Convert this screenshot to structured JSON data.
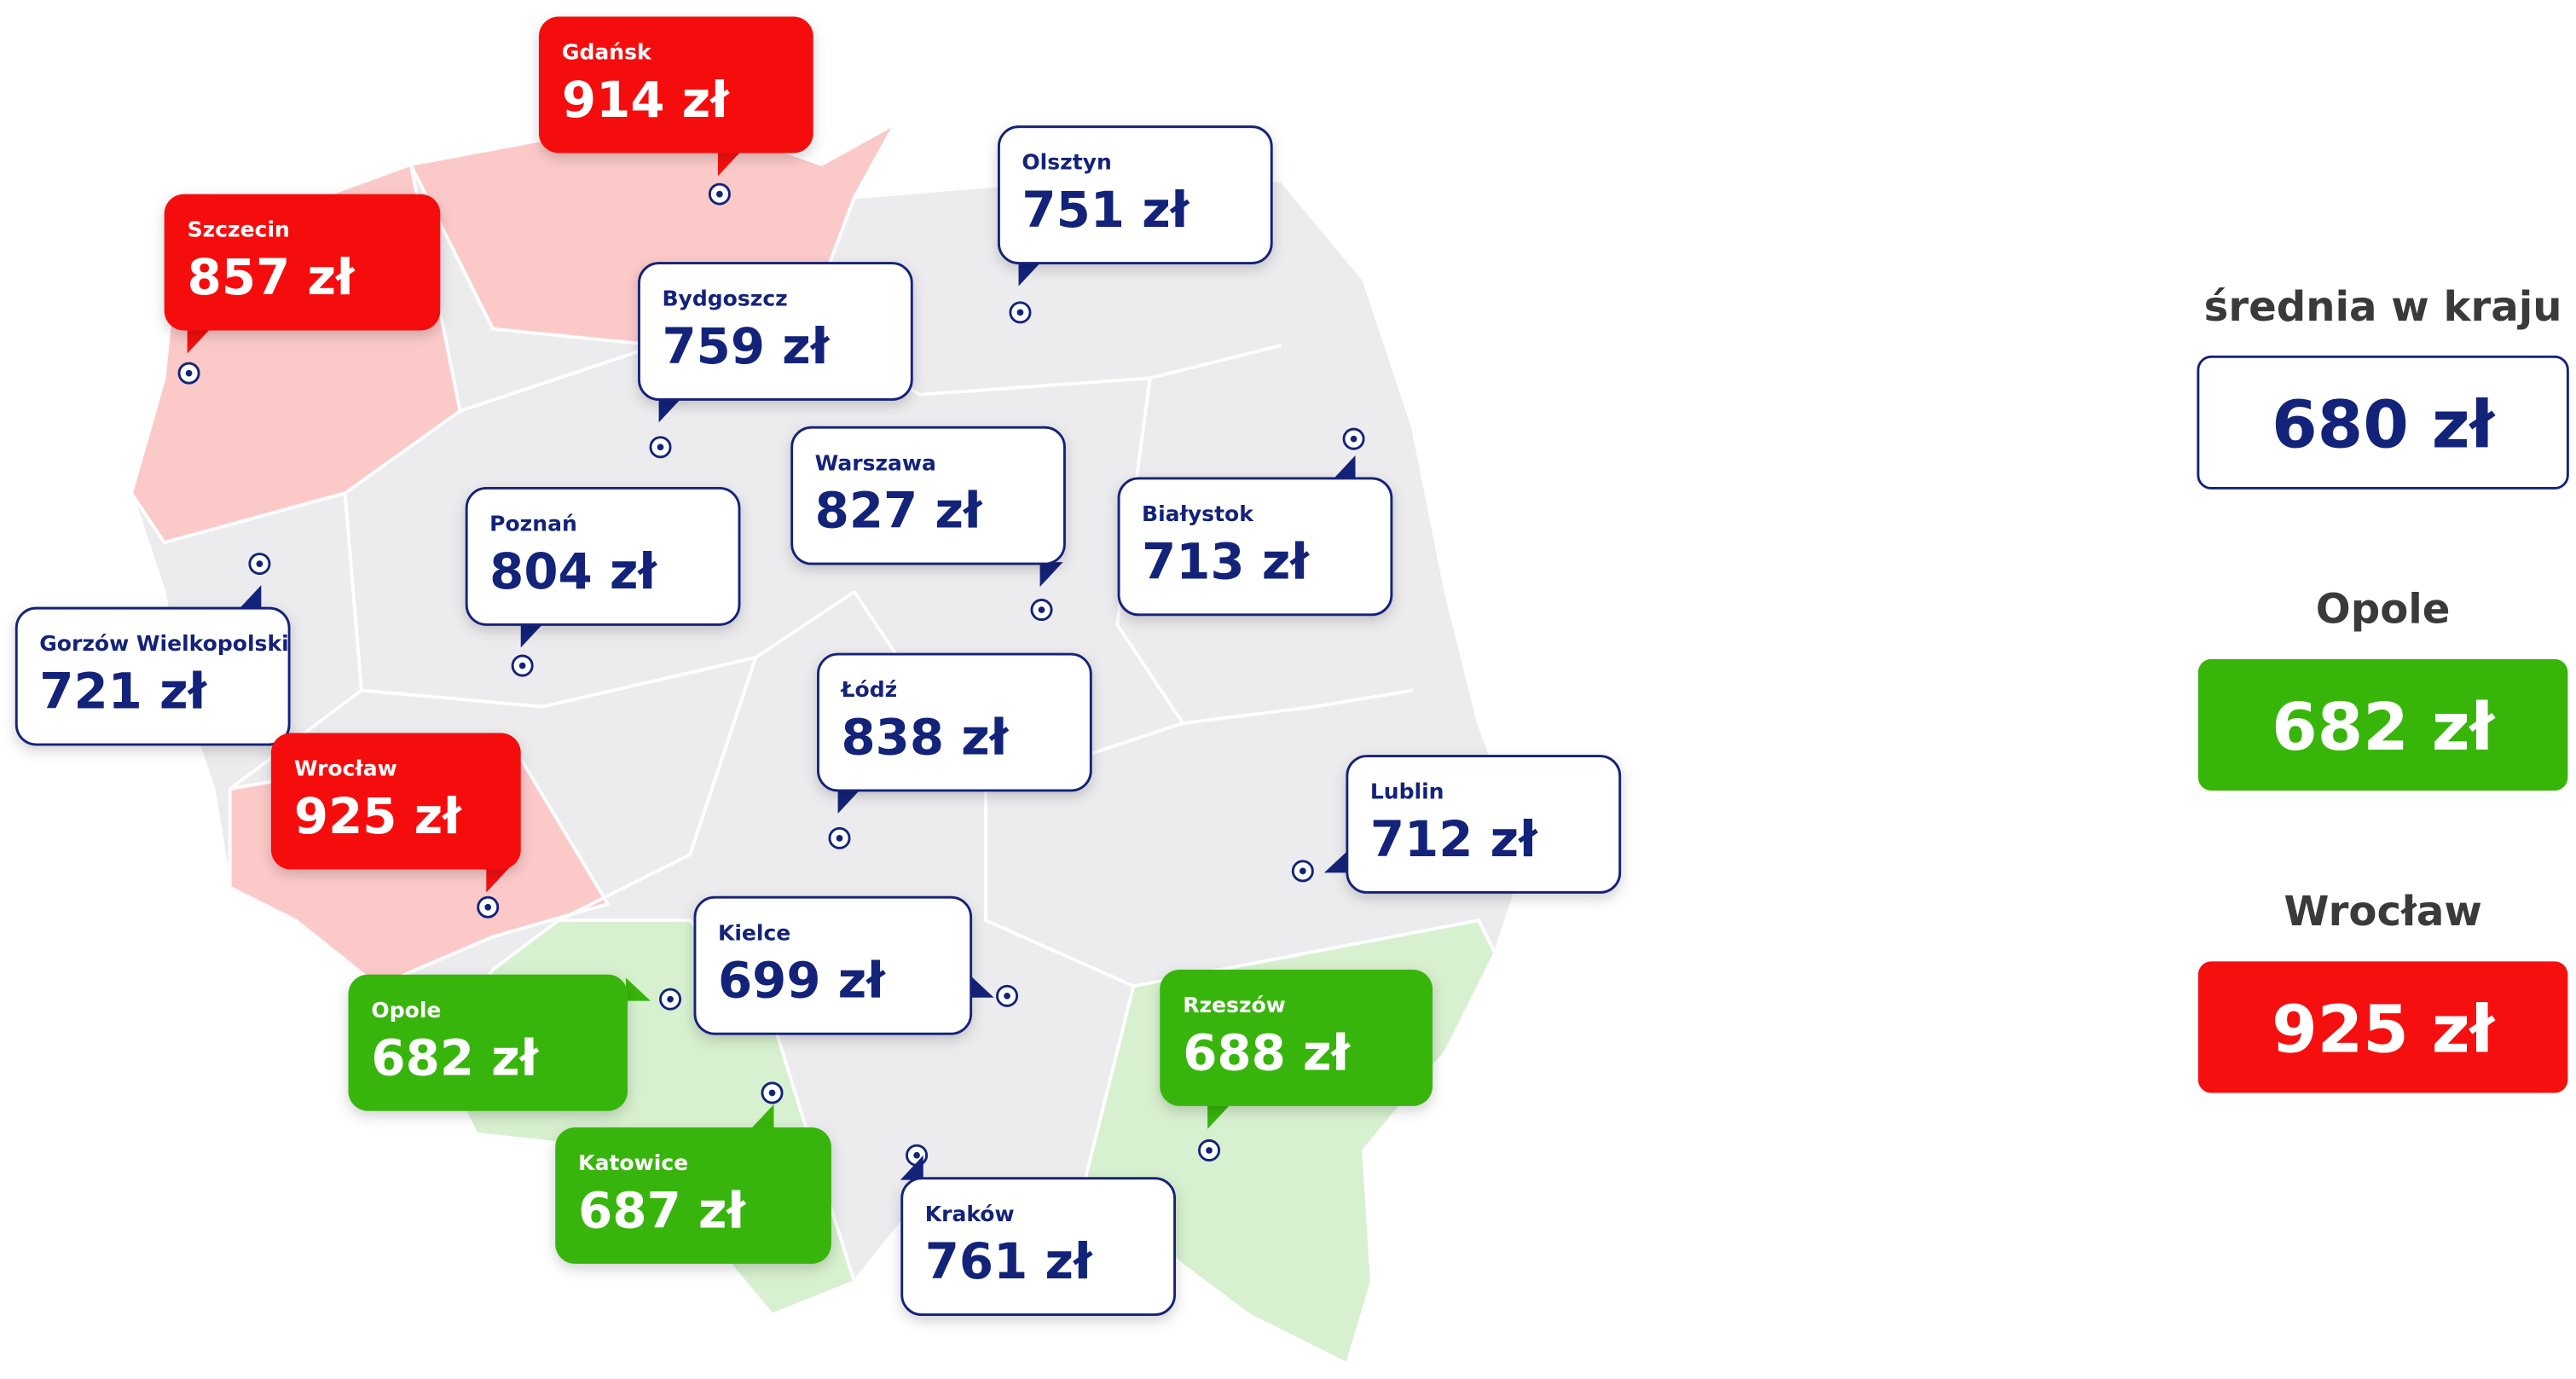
{
  "map": {
    "cities": [
      {
        "name": "Gdańsk",
        "price": "914 zł",
        "color": "#f50f0f"
      },
      {
        "name": "Szczecin",
        "price": "857 zł",
        "color": "#f50f0f"
      },
      {
        "name": "Olsztyn",
        "price": "751 zł",
        "color": "#ffffff"
      },
      {
        "name": "Bydgoszcz",
        "price": "759 zł",
        "color": "#ffffff"
      },
      {
        "name": "Warszawa",
        "price": "827 zł",
        "color": "#ffffff"
      },
      {
        "name": "Poznań",
        "price": "804 zł",
        "color": "#ffffff"
      },
      {
        "name": "Białystok",
        "price": "713 zł",
        "color": "#ffffff"
      },
      {
        "name": "Gorzów Wielkopolski",
        "price": "721 zł",
        "color": "#ffffff"
      },
      {
        "name": "Łódź",
        "price": "838 zł",
        "color": "#ffffff"
      },
      {
        "name": "Wrocław",
        "price": "925 zł",
        "color": "#f50f0f"
      },
      {
        "name": "Lublin",
        "price": "712 zł",
        "color": "#ffffff"
      },
      {
        "name": "Kielce",
        "price": "699 zł",
        "color": "#ffffff"
      },
      {
        "name": "Opole",
        "price": "682 zł",
        "color": "#37b509"
      },
      {
        "name": "Rzeszów",
        "price": "688 zł",
        "color": "#37b509"
      },
      {
        "name": "Katowice",
        "price": "687 zł",
        "color": "#37b509"
      },
      {
        "name": "Kraków",
        "price": "761 zł",
        "color": "#ffffff"
      }
    ]
  },
  "summary": [
    {
      "label": "średnia w kraju",
      "price": "680 zł",
      "color": "#ffffff"
    },
    {
      "label": "Opole",
      "price": "682 zł",
      "color": "#37b509"
    },
    {
      "label": "Wrocław",
      "price": "925 zł",
      "color": "#f50f0f"
    }
  ]
}
